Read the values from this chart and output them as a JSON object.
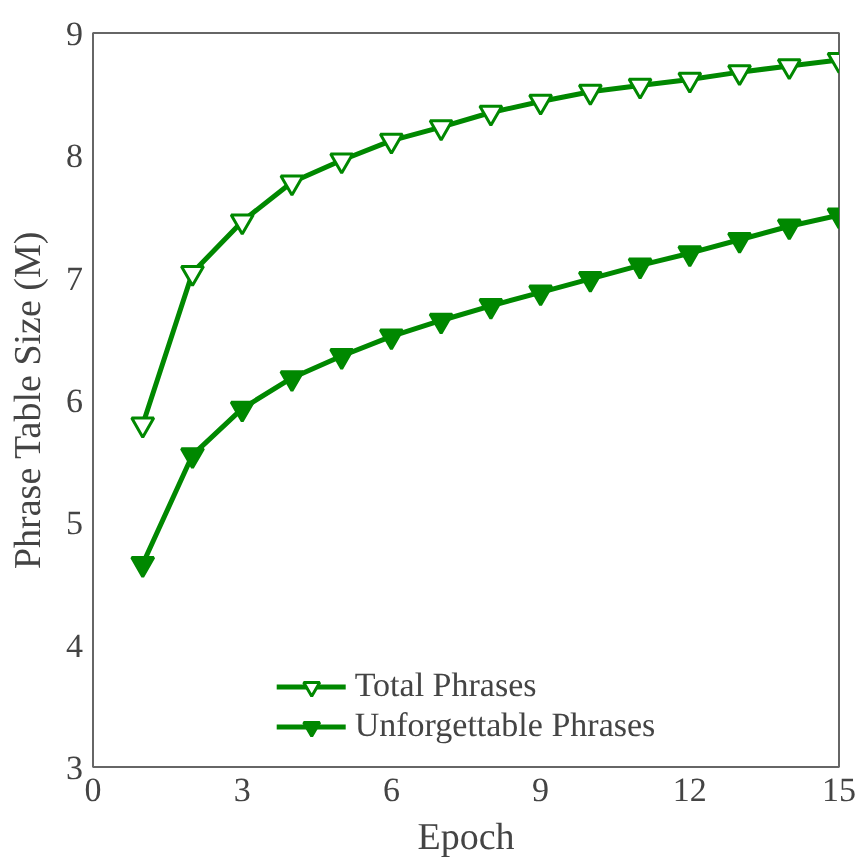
{
  "chart_data": {
    "type": "line",
    "xlabel": "Epoch",
    "ylabel": "Phrase Table Size (M)",
    "x": [
      1,
      2,
      3,
      4,
      5,
      6,
      7,
      8,
      9,
      10,
      11,
      12,
      13,
      14,
      15
    ],
    "xlim": [
      0,
      15
    ],
    "xticks": [
      0,
      3,
      6,
      9,
      12,
      15
    ],
    "ylim": [
      3,
      9
    ],
    "yticks": [
      3,
      4,
      5,
      6,
      7,
      8,
      9
    ],
    "grid": false,
    "legend": "bottom",
    "marker": "triangle",
    "line_style": "solid",
    "series": [
      {
        "name": "Total Phrases",
        "color": "#008800",
        "values": [
          5.8,
          7.04,
          7.46,
          7.78,
          7.96,
          8.12,
          8.23,
          8.35,
          8.44,
          8.52,
          8.57,
          8.62,
          8.68,
          8.73,
          8.78
        ]
      },
      {
        "name": "Unforgettable Phrases",
        "color": "#008800",
        "values": [
          4.66,
          5.55,
          5.93,
          6.18,
          6.36,
          6.52,
          6.65,
          6.77,
          6.88,
          6.99,
          7.1,
          7.2,
          7.31,
          7.42,
          7.51
        ]
      }
    ]
  }
}
